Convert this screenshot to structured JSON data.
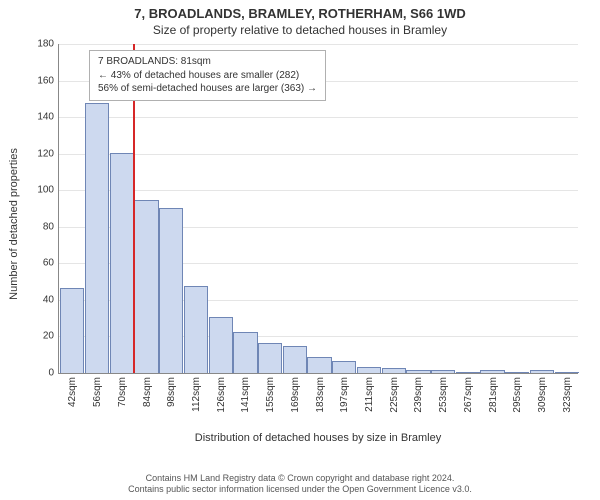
{
  "chart": {
    "title_main": "7, BROADLANDS, BRAMLEY, ROTHERHAM, S66 1WD",
    "title_sub": "Size of property relative to detached houses in Bramley",
    "yaxis_label": "Number of detached properties",
    "xaxis_label": "Distribution of detached houses by size in Bramley",
    "ylim_max": 180,
    "ytick_step": 20,
    "yticks": [
      0,
      20,
      40,
      60,
      80,
      100,
      120,
      140,
      160,
      180
    ],
    "bar_fill": "#cdd9ef",
    "bar_stroke": "#6f86b5",
    "marker_color": "#d62728",
    "grid_color": "#e5e5e5",
    "axis_color": "#888888",
    "background": "#ffffff",
    "bars": [
      {
        "label": "42sqm",
        "value": 46
      },
      {
        "label": "56sqm",
        "value": 147
      },
      {
        "label": "70sqm",
        "value": 120
      },
      {
        "label": "84sqm",
        "value": 94
      },
      {
        "label": "98sqm",
        "value": 90
      },
      {
        "label": "112sqm",
        "value": 47
      },
      {
        "label": "126sqm",
        "value": 30
      },
      {
        "label": "141sqm",
        "value": 22
      },
      {
        "label": "155sqm",
        "value": 16
      },
      {
        "label": "169sqm",
        "value": 14
      },
      {
        "label": "183sqm",
        "value": 8
      },
      {
        "label": "197sqm",
        "value": 6
      },
      {
        "label": "211sqm",
        "value": 3
      },
      {
        "label": "225sqm",
        "value": 2
      },
      {
        "label": "239sqm",
        "value": 1
      },
      {
        "label": "253sqm",
        "value": 1
      },
      {
        "label": "267sqm",
        "value": 0
      },
      {
        "label": "281sqm",
        "value": 1
      },
      {
        "label": "295sqm",
        "value": 0
      },
      {
        "label": "309sqm",
        "value": 1
      },
      {
        "label": "323sqm",
        "value": 0
      }
    ],
    "marker_between_index": 2,
    "annotation": {
      "line1": "7 BROADLANDS: 81sqm",
      "line2": "← 43% of detached houses are smaller (282)",
      "line3": "56% of semi-detached houses are larger (363) →"
    },
    "license_line1": "Contains HM Land Registry data © Crown copyright and database right 2024.",
    "license_line2": "Contains public sector information licensed under the Open Government Licence v3.0."
  }
}
